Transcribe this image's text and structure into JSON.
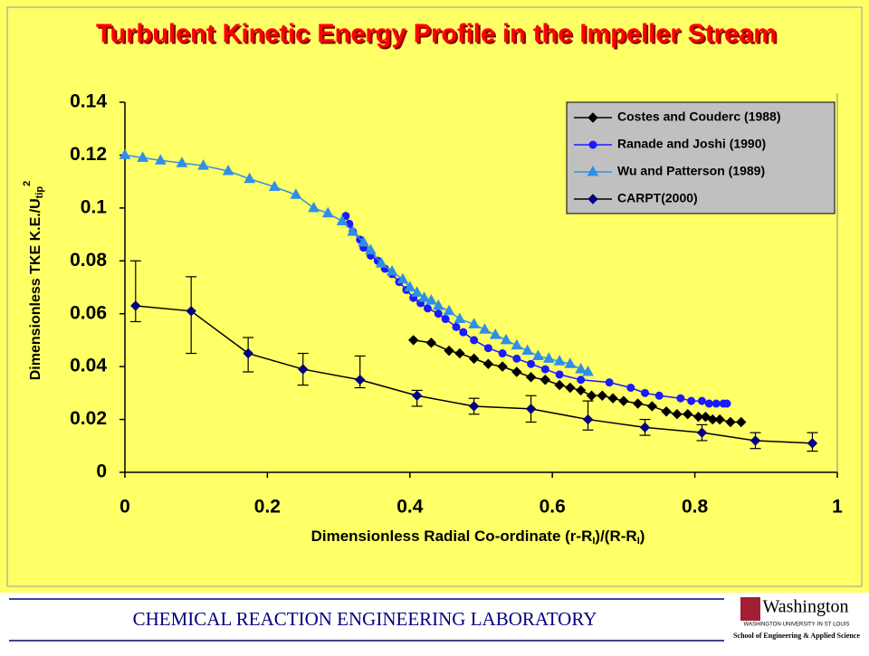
{
  "chart_data": {
    "type": "line",
    "title": "Turbulent Kinetic Energy Profile in the Impeller Stream",
    "xlabel": [
      "Dimensionless Radial Co-ordinate (r-R",
      "I",
      ")/(R-R",
      "I",
      ")"
    ],
    "ylabel": [
      "Dimensionless TKE K.E./U",
      "tip",
      "2"
    ],
    "xlim": [
      0,
      1
    ],
    "xticks": [
      0,
      0.2,
      0.4,
      0.6,
      0.8,
      1
    ],
    "ylim": [
      0,
      0.14
    ],
    "yticks": [
      0,
      0.02,
      0.04,
      0.06,
      0.08,
      0.1,
      0.12,
      0.14
    ],
    "grid": false,
    "legend": "upper right",
    "series": [
      {
        "name": "Costes and Couderc (1988)",
        "color": "#000000",
        "line_color": "#000000",
        "marker": "diamond",
        "x": [
          0.405,
          0.43,
          0.455,
          0.47,
          0.49,
          0.51,
          0.53,
          0.55,
          0.57,
          0.59,
          0.61,
          0.625,
          0.64,
          0.655,
          0.67,
          0.685,
          0.7,
          0.72,
          0.74,
          0.76,
          0.775,
          0.79,
          0.805,
          0.815,
          0.825,
          0.835,
          0.85,
          0.865
        ],
        "values": [
          0.05,
          0.049,
          0.046,
          0.045,
          0.043,
          0.041,
          0.04,
          0.038,
          0.036,
          0.035,
          0.033,
          0.032,
          0.031,
          0.029,
          0.029,
          0.028,
          0.027,
          0.026,
          0.025,
          0.023,
          0.022,
          0.022,
          0.021,
          0.021,
          0.02,
          0.02,
          0.019,
          0.019
        ]
      },
      {
        "name": "Ranade and Joshi (1990)",
        "color": "#1a1aff",
        "line_color": "#1a1aff",
        "marker": "circle",
        "x": [
          0.31,
          0.315,
          0.32,
          0.33,
          0.335,
          0.345,
          0.355,
          0.365,
          0.375,
          0.385,
          0.395,
          0.405,
          0.415,
          0.425,
          0.44,
          0.45,
          0.465,
          0.475,
          0.49,
          0.51,
          0.53,
          0.55,
          0.57,
          0.59,
          0.61,
          0.64,
          0.68,
          0.71,
          0.73,
          0.75,
          0.78,
          0.795,
          0.81,
          0.82,
          0.83,
          0.84,
          0.845
        ],
        "values": [
          0.097,
          0.094,
          0.091,
          0.088,
          0.085,
          0.082,
          0.08,
          0.077,
          0.075,
          0.072,
          0.069,
          0.066,
          0.064,
          0.062,
          0.06,
          0.058,
          0.055,
          0.053,
          0.05,
          0.047,
          0.045,
          0.043,
          0.041,
          0.039,
          0.037,
          0.035,
          0.034,
          0.032,
          0.03,
          0.029,
          0.028,
          0.027,
          0.027,
          0.026,
          0.026,
          0.026,
          0.026
        ]
      },
      {
        "name": "Wu and Patterson (1989)",
        "color": "#2f8fe8",
        "line_color": "#2f8fe8",
        "marker": "triangle",
        "x": [
          0,
          0.025,
          0.05,
          0.08,
          0.11,
          0.145,
          0.175,
          0.21,
          0.24,
          0.265,
          0.285,
          0.305,
          0.32,
          0.335,
          0.345,
          0.36,
          0.375,
          0.39,
          0.4,
          0.41,
          0.42,
          0.43,
          0.44,
          0.455,
          0.47,
          0.49,
          0.505,
          0.52,
          0.535,
          0.55,
          0.565,
          0.58,
          0.595,
          0.61,
          0.625,
          0.64,
          0.65
        ],
        "values": [
          0.12,
          0.119,
          0.118,
          0.117,
          0.116,
          0.114,
          0.111,
          0.108,
          0.105,
          0.1,
          0.098,
          0.095,
          0.091,
          0.087,
          0.084,
          0.079,
          0.076,
          0.073,
          0.07,
          0.068,
          0.066,
          0.065,
          0.063,
          0.061,
          0.058,
          0.056,
          0.054,
          0.052,
          0.05,
          0.048,
          0.046,
          0.044,
          0.043,
          0.042,
          0.041,
          0.039,
          0.038
        ]
      },
      {
        "name": "CARPT(2000)",
        "color": "#000080",
        "line_color": "#000000",
        "marker": "diamond",
        "x": [
          0.015,
          0.093,
          0.173,
          0.25,
          0.33,
          0.41,
          0.49,
          0.57,
          0.65,
          0.73,
          0.81,
          0.885,
          0.965
        ],
        "values": [
          0.063,
          0.061,
          0.045,
          0.039,
          0.035,
          0.029,
          0.025,
          0.024,
          0.02,
          0.017,
          0.015,
          0.012,
          0.011
        ],
        "err_low": [
          0.006,
          0.016,
          0.007,
          0.006,
          0.003,
          0.004,
          0.003,
          0.005,
          0.004,
          0.003,
          0.003,
          0.003,
          0.003
        ],
        "err_high": [
          0.017,
          0.013,
          0.006,
          0.006,
          0.009,
          0.002,
          0.003,
          0.005,
          0.007,
          0.003,
          0.003,
          0.003,
          0.004
        ]
      }
    ]
  },
  "footer": {
    "lab": "CHEMICAL  REACTION  ENGINEERING  LABORATORY",
    "logo": "Washington",
    "university": "WASHINGTON·UNIVERSITY·IN·ST·LOUIS",
    "school": "School of Engineering & Applied Science"
  }
}
